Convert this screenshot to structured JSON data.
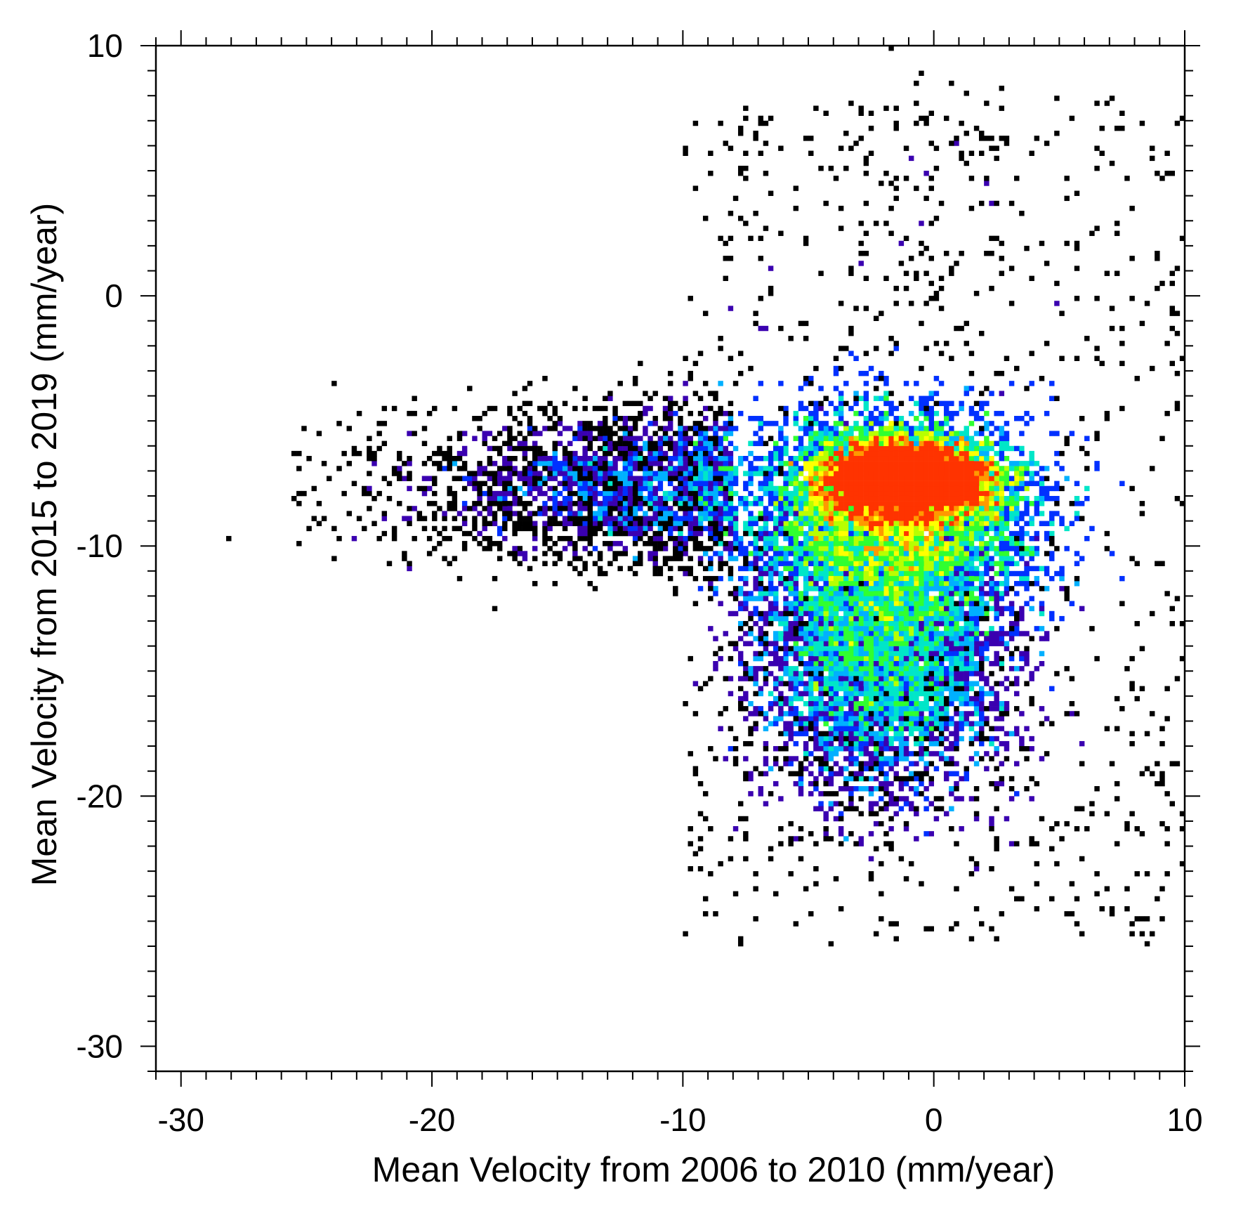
{
  "chart_data": {
    "type": "heatmap",
    "subtype": "density-scatter",
    "xlabel": "Mean Velocity from 2006 to 2010 (mm/year)",
    "ylabel": "Mean Velocity from 2015 to 2019 (mm/year)",
    "xlim": [
      -31,
      10
    ],
    "ylim": [
      -31,
      10
    ],
    "x_ticks": [
      -30,
      -20,
      -10,
      0,
      10
    ],
    "y_ticks": [
      10,
      0,
      -10,
      -20,
      -30
    ],
    "x_ticks_labels": [
      "-30",
      "-20",
      "-10",
      "0",
      "10"
    ],
    "y_ticks_labels": [
      "10",
      "0",
      "-10",
      "-20",
      "-30"
    ],
    "minor_tick_step": 1,
    "grid": false,
    "colormap": [
      "#000000",
      "#3a00b0",
      "#0030ff",
      "#00b0ff",
      "#00e6c8",
      "#30ff30",
      "#b8ff00",
      "#ffff00",
      "#ff9900",
      "#ff3300"
    ],
    "density_core": {
      "x": -1,
      "y": -7.3
    },
    "density_extent": {
      "x_range_high_density": [
        -7,
        3
      ],
      "y_range_high_density": [
        -12,
        -4
      ],
      "y_tail_low": -24,
      "x_tail_low": -30
    }
  }
}
